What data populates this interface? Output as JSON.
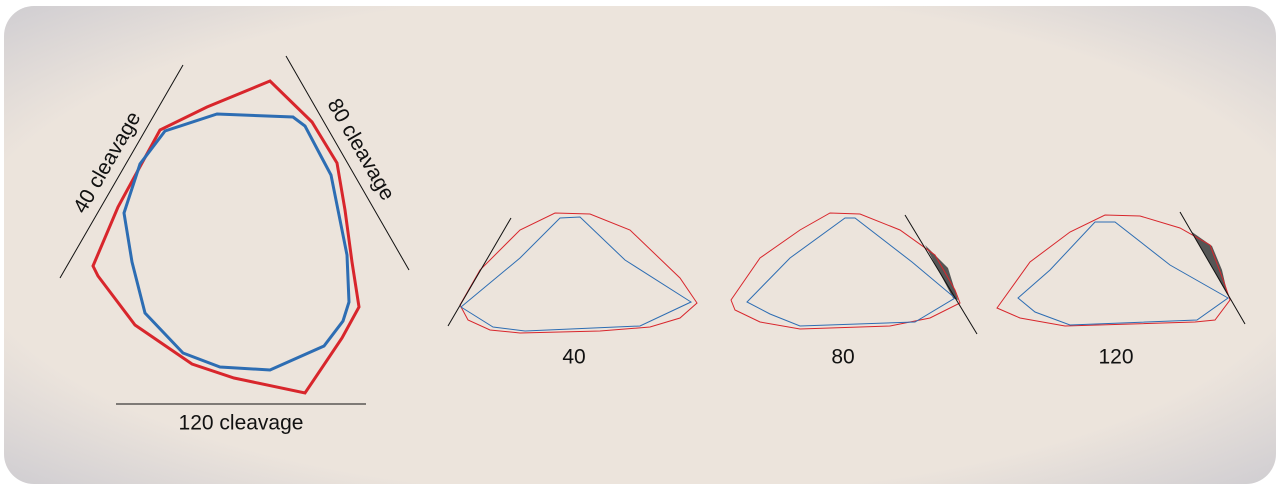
{
  "labels": {
    "cleavage_40": "40 cleavage",
    "cleavage_80": "80 cleavage",
    "cleavage_120": "120 cleavage"
  },
  "panels": [
    {
      "label": "40"
    },
    {
      "label": "80"
    },
    {
      "label": "120"
    }
  ]
}
